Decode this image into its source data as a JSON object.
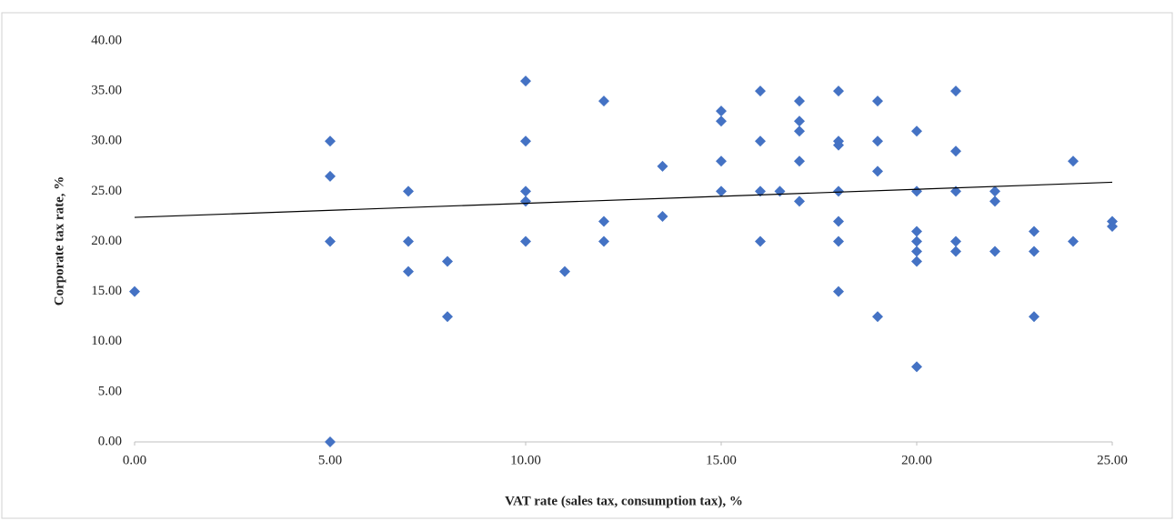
{
  "chart_data": {
    "type": "scatter",
    "x_label": "VAT rate (sales tax, consumption tax), %",
    "y_label": "Corporate tax rate, %",
    "color": "#4472c4",
    "xlim": [
      0,
      25
    ],
    "ylim": [
      0,
      40
    ],
    "xticks": [
      {
        "value": 0,
        "label": "0.00"
      },
      {
        "value": 5,
        "label": "5.00"
      },
      {
        "value": 10,
        "label": "10.00"
      },
      {
        "value": 15,
        "label": "15.00"
      },
      {
        "value": 20,
        "label": "20.00"
      },
      {
        "value": 25,
        "label": "25.00"
      }
    ],
    "yticks": [
      {
        "value": 0,
        "label": "0.00"
      },
      {
        "value": 5,
        "label": "5.00"
      },
      {
        "value": 10,
        "label": "10.00"
      },
      {
        "value": 15,
        "label": "15.00"
      },
      {
        "value": 20,
        "label": "20.00"
      },
      {
        "value": 25,
        "label": "25.00"
      },
      {
        "value": 30,
        "label": "30.00"
      },
      {
        "value": 35,
        "label": "35.00"
      },
      {
        "value": 40,
        "label": "40.00"
      }
    ],
    "x": [
      0,
      5,
      5,
      5,
      5,
      7,
      7,
      7,
      8,
      8,
      10,
      10,
      10,
      10,
      10,
      11,
      12,
      12,
      12,
      13.5,
      13.5,
      15,
      15,
      15,
      15,
      16,
      16,
      16,
      16,
      16.5,
      17,
      17,
      17,
      17,
      17,
      18,
      18,
      18,
      18,
      18,
      18,
      18,
      19,
      19,
      19,
      19,
      20,
      20,
      20,
      20,
      20,
      20,
      20,
      21,
      21,
      21,
      21,
      21,
      22,
      22,
      22,
      23,
      23,
      23,
      24,
      24,
      25,
      25
    ],
    "values": [
      15,
      0,
      30,
      26.5,
      20,
      25,
      20,
      17,
      18,
      12.5,
      36,
      30,
      25,
      24,
      20,
      17,
      34,
      22,
      20,
      27.5,
      22.5,
      33,
      32,
      28,
      25,
      35,
      30,
      25,
      20,
      25,
      34,
      32,
      31,
      28,
      24,
      35,
      30,
      29.6,
      25,
      22,
      20,
      15,
      34,
      30,
      27,
      12.5,
      31,
      25,
      21,
      20,
      19,
      18,
      7.5,
      35,
      29,
      25,
      20,
      19,
      25,
      24,
      19,
      21,
      19,
      12.5,
      28,
      20,
      22,
      21.5
    ],
    "trendline": {
      "color": "#000000",
      "x": [
        0,
        25
      ],
      "values": [
        22.4,
        25.9
      ]
    }
  }
}
